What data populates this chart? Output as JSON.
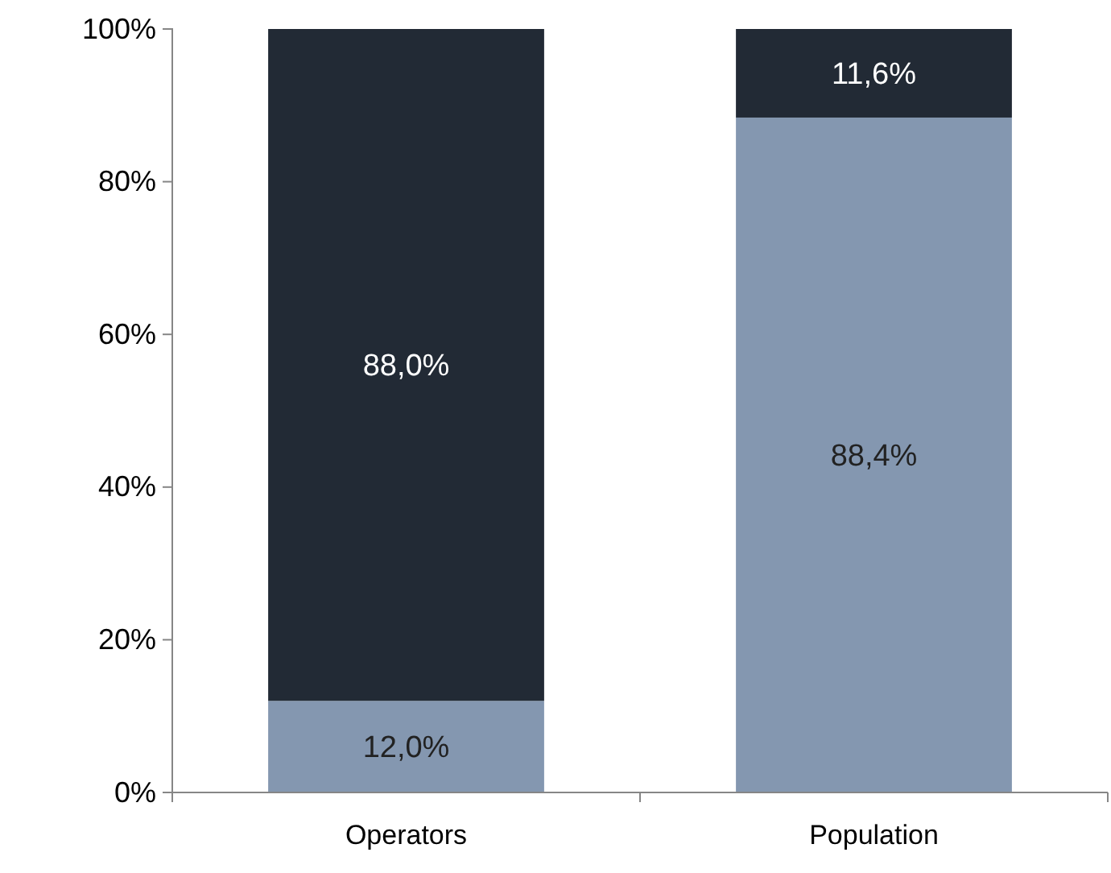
{
  "chart_data": {
    "type": "bar",
    "stacked": true,
    "categories": [
      "Operators",
      "Population"
    ],
    "series": [
      {
        "color": "#8497b0",
        "values": [
          12.0,
          88.4
        ],
        "value_labels": [
          "12,0%",
          "88,4%"
        ]
      },
      {
        "color": "#222a35",
        "values": [
          88.0,
          11.6
        ],
        "value_labels": [
          "88,0%",
          "11,6%"
        ]
      }
    ],
    "ylim": [
      0,
      100
    ],
    "yticks": [
      {
        "value": 0,
        "label": "0%"
      },
      {
        "value": 20,
        "label": "20%"
      },
      {
        "value": 40,
        "label": "40%"
      },
      {
        "value": 60,
        "label": "60%"
      },
      {
        "value": 80,
        "label": "80%"
      },
      {
        "value": 100,
        "label": "100%"
      }
    ],
    "tick_labels": "xy"
  }
}
